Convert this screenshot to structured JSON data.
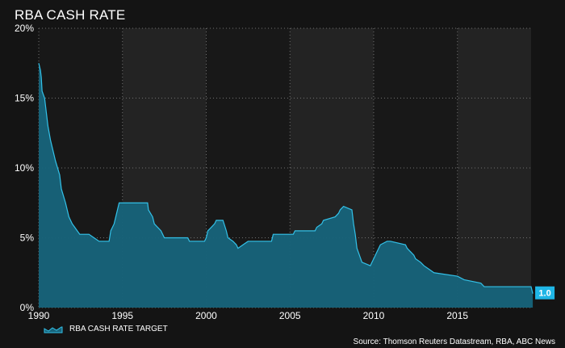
{
  "chart_data": {
    "type": "area",
    "title": "RBA CASH RATE",
    "xlabel": "",
    "ylabel": "",
    "xlim": [
      1990,
      2019.4
    ],
    "ylim": [
      0,
      20
    ],
    "x_ticks": [
      1990,
      1995,
      2000,
      2005,
      2010,
      2015
    ],
    "y_ticks": [
      0,
      5,
      10,
      15,
      20
    ],
    "y_tick_labels": [
      "0%",
      "5%",
      "10%",
      "15%",
      "20%"
    ],
    "grid": true,
    "legend_position": "bottom-left",
    "colors": {
      "background": "#141414",
      "plot_band_light": "#232323",
      "plot_band_dark": "#181818",
      "area_fill": "#17637a",
      "line": "#33c1e8",
      "gridline": "#6f6f6f",
      "label_box": "#1fb6e6"
    },
    "series": [
      {
        "name": "RBA CASH RATE TARGET",
        "x": [
          1990.0,
          1990.1,
          1990.15,
          1990.2,
          1990.35,
          1990.45,
          1990.55,
          1990.7,
          1990.8,
          1991.0,
          1991.25,
          1991.35,
          1991.6,
          1991.7,
          1991.8,
          1992.0,
          1992.15,
          1992.3,
          1992.45,
          1993.0,
          1993.3,
          1993.6,
          1994.2,
          1994.3,
          1994.5,
          1994.6,
          1994.7,
          1994.8,
          1995.0,
          1996.5,
          1996.55,
          1996.8,
          1996.9,
          1997.3,
          1997.5,
          1997.6,
          1998.9,
          1999.0,
          1999.9,
          2000.0,
          2000.1,
          2000.3,
          2000.5,
          2000.6,
          2001.0,
          2001.2,
          2001.3,
          2001.6,
          2001.8,
          2001.9,
          2002.2,
          2002.5,
          2003.9,
          2004.0,
          2005.2,
          2005.3,
          2006.5,
          2006.6,
          2006.9,
          2007.0,
          2007.7,
          2007.9,
          2008.0,
          2008.2,
          2008.7,
          2008.8,
          2008.9,
          2009.0,
          2009.3,
          2009.8,
          2009.9,
          2010.0,
          2010.2,
          2010.4,
          2010.8,
          2011.0,
          2011.9,
          2012.0,
          2012.4,
          2012.5,
          2012.8,
          2013.0,
          2013.3,
          2013.6,
          2015.0,
          2015.4,
          2016.4,
          2016.6,
          2019.4,
          2019.5
        ],
        "values": [
          17.5,
          17.0,
          16.5,
          15.5,
          15.0,
          14.0,
          13.0,
          12.0,
          11.5,
          10.5,
          9.5,
          8.5,
          7.5,
          7.0,
          6.5,
          6.0,
          5.75,
          5.5,
          5.25,
          5.25,
          5.0,
          4.75,
          4.75,
          5.5,
          6.0,
          6.5,
          7.0,
          7.5,
          7.5,
          7.5,
          7.0,
          6.5,
          6.0,
          5.5,
          5.0,
          5.0,
          5.0,
          4.75,
          4.75,
          5.0,
          5.5,
          5.75,
          6.0,
          6.25,
          6.25,
          5.5,
          5.0,
          4.75,
          4.5,
          4.25,
          4.5,
          4.75,
          4.75,
          5.25,
          5.25,
          5.5,
          5.5,
          5.75,
          6.0,
          6.25,
          6.5,
          6.75,
          7.0,
          7.25,
          7.0,
          6.0,
          5.25,
          4.25,
          3.25,
          3.0,
          3.25,
          3.5,
          4.0,
          4.5,
          4.75,
          4.75,
          4.5,
          4.25,
          3.75,
          3.5,
          3.25,
          3.0,
          2.75,
          2.5,
          2.25,
          2.0,
          1.75,
          1.5,
          1.5,
          1.0
        ]
      }
    ],
    "annotations": [
      {
        "x": 2019.5,
        "y": 1.0,
        "text": "1.0"
      }
    ],
    "source": "Source: Thomson Reuters Datastream, RBA, ABC News"
  }
}
